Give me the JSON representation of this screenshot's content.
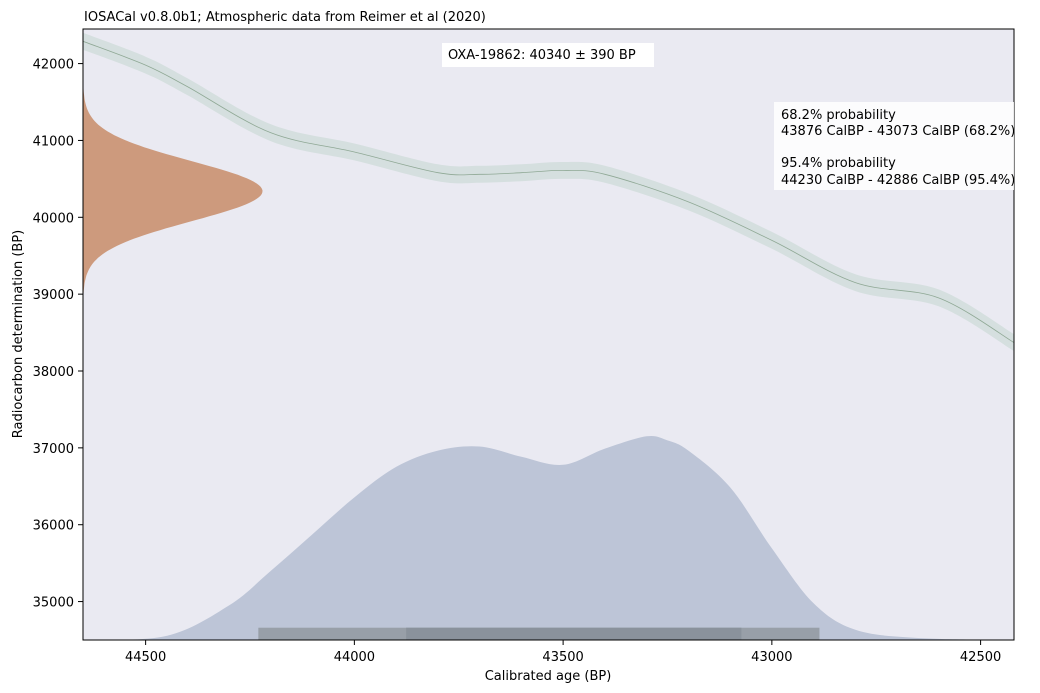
{
  "chart_data": {
    "type": "area",
    "title": "IOSACal v0.8.0b1; Atmospheric data from Reimer et al (2020)",
    "xlabel": "Calibrated age (BP)",
    "ylabel": "Radiocarbon determination (BP)",
    "xlim": [
      44650,
      42420
    ],
    "ylim": [
      34500,
      42450
    ],
    "x_reversed": true,
    "grid": false,
    "xticks": [
      44500,
      44000,
      43500,
      43000,
      42500
    ],
    "yticks": [
      35000,
      36000,
      37000,
      38000,
      39000,
      40000,
      41000,
      42000
    ],
    "sample_label": "OXA-19862: 40340 ± 390 BP",
    "probability_text": [
      "68.2% probability",
      "43876 CalBP - 43073 CalBP (68.2%)",
      "",
      "95.4% probability",
      "44230 CalBP - 42886 CalBP (95.4%)"
    ],
    "calibration_curve": {
      "x": [
        44650,
        44500,
        44400,
        44200,
        44000,
        43800,
        43700,
        43600,
        43500,
        43400,
        43200,
        43000,
        42800,
        42600,
        42420
      ],
      "y": [
        42290,
        41980,
        41700,
        41100,
        40850,
        40580,
        40560,
        40580,
        40610,
        40560,
        40200,
        39700,
        39150,
        38950,
        38370
      ],
      "sigma": [
        110,
        110,
        110,
        110,
        110,
        110,
        110,
        110,
        110,
        110,
        110,
        110,
        110,
        110,
        110
      ]
    },
    "radiocarbon_distribution": {
      "mean": 40340,
      "sd": 390,
      "y_range": [
        39000,
        41700
      ]
    },
    "calibrated_distribution": {
      "x": [
        44650,
        44450,
        44300,
        44200,
        44100,
        44000,
        43900,
        43800,
        43700,
        43600,
        43500,
        43400,
        43300,
        43250,
        43200,
        43100,
        43000,
        42900,
        42800,
        42650,
        42420
      ],
      "density": [
        0.0,
        0.02,
        0.17,
        0.34,
        0.52,
        0.7,
        0.85,
        0.93,
        0.95,
        0.9,
        0.86,
        0.94,
        1.0,
        0.98,
        0.93,
        0.75,
        0.45,
        0.18,
        0.05,
        0.01,
        0.0
      ],
      "range_68": [
        43876,
        43073
      ],
      "range_95": [
        44230,
        42886
      ]
    },
    "colors": {
      "background": "#eaeaf2",
      "curve_band": "#d5dfdf",
      "curve_line": "#8fa895",
      "radiocarbon_fill": "#cd9a7d",
      "calibrated_fill": "#bdc5d7",
      "range_95_bar": "#989fa8",
      "range_68_bar": "#8a929c"
    }
  }
}
